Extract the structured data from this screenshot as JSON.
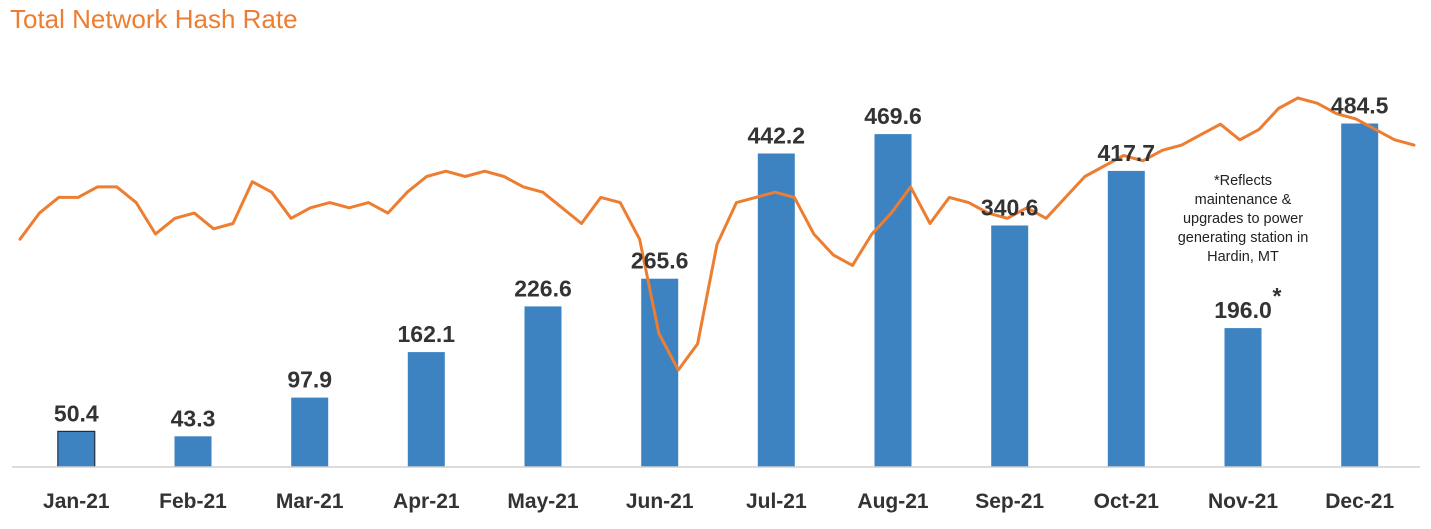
{
  "chart_data": {
    "type": "bar",
    "title": "Total Network Hash Rate",
    "categories": [
      "Jan-21",
      "Feb-21",
      "Mar-21",
      "Apr-21",
      "May-21",
      "Jun-21",
      "Jul-21",
      "Aug-21",
      "Sep-21",
      "Oct-21",
      "Nov-21",
      "Dec-21"
    ],
    "values": [
      50.4,
      43.3,
      97.9,
      162.1,
      226.6,
      265.6,
      442.2,
      469.6,
      340.6,
      417.7,
      196.0,
      484.5
    ],
    "value_labels": [
      "50.4",
      "43.3",
      "97.9",
      "162.1",
      "226.6",
      "265.6",
      "442.2",
      "469.6",
      "340.6",
      "417.7",
      "196.0",
      "484.5"
    ],
    "ylim": [
      0,
      560
    ],
    "line_series_unlabeled": [
      30,
      35,
      38,
      38,
      40,
      40,
      37,
      31,
      34,
      35,
      32,
      33,
      41,
      39,
      34,
      36,
      37,
      36,
      37,
      35,
      39,
      42,
      43,
      42,
      43,
      42,
      40,
      39,
      36,
      33,
      38,
      37,
      30,
      12,
      5,
      10,
      29,
      37,
      38,
      39,
      38,
      31,
      27,
      25,
      31,
      35,
      40,
      33,
      38,
      37,
      35,
      34,
      36,
      34,
      38,
      42,
      44,
      46,
      45,
      47,
      48,
      50,
      52,
      49,
      51,
      55,
      57,
      56,
      54,
      53,
      51,
      49,
      48
    ],
    "annotation": {
      "marker": "*",
      "lines": [
        "*Reflects",
        "maintenance &",
        "upgrades to power",
        "generating station in",
        "Hardin, MT"
      ]
    },
    "bar_color": "#3E83C1",
    "line_color": "#ED7D31",
    "grid": false,
    "legend": "none"
  }
}
